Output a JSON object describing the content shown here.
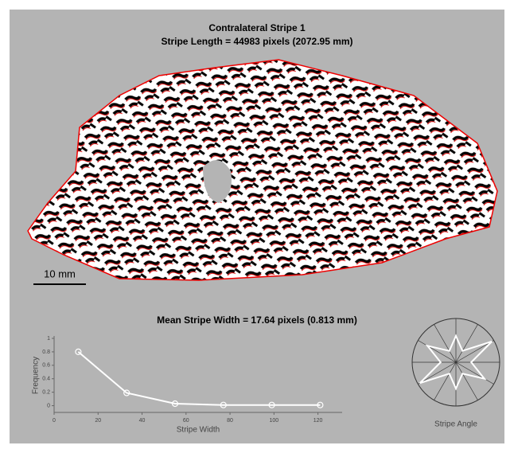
{
  "header": {
    "title": "Contralateral Stripe 1",
    "subtitle": "Stripe Length = 44983 pixels (2072.95 mm)"
  },
  "scale_bar": "10 mm",
  "chart_data": [
    {
      "type": "line",
      "title": "Mean Stripe Width = 17.64 pixels (0.813 mm)",
      "x_label": "Stripe Width",
      "y_label": "Frequency",
      "x": [
        11,
        33,
        55,
        77,
        99,
        121
      ],
      "values": [
        0.8,
        0.19,
        0.03,
        0.01,
        0.01,
        0.01
      ],
      "color": "#ffffff",
      "xlim": [
        0,
        131
      ],
      "xticks": [
        0,
        20,
        40,
        60,
        80,
        100,
        120
      ],
      "ylim": [
        -0.1,
        1
      ],
      "yticks": [
        0,
        0.2,
        0.4,
        0.6,
        0.8,
        1
      ]
    },
    {
      "type": "polar",
      "x_label": "Stripe Angle",
      "x": [
        0,
        30,
        60,
        90,
        120,
        150,
        180,
        210,
        240,
        270,
        300,
        330
      ],
      "values": [
        0.35,
        0.95,
        0.3,
        0.6,
        0.3,
        0.75,
        0.35,
        0.95,
        0.3,
        0.6,
        0.3,
        0.75
      ],
      "ylim": [
        0,
        1
      ],
      "color": "#ffffff"
    }
  ]
}
